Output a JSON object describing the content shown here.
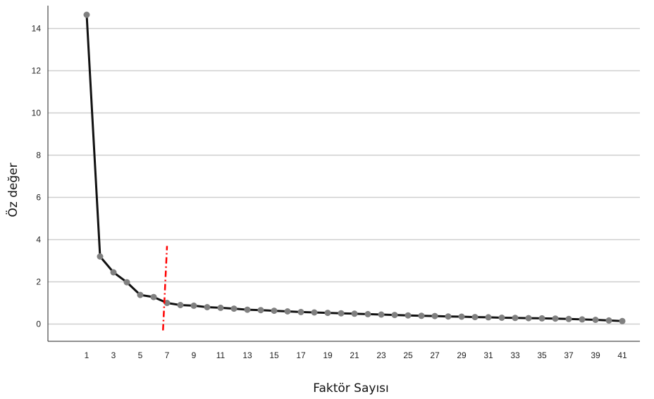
{
  "chart_data": {
    "type": "line",
    "title": "",
    "xlabel": "Faktör Sayısı",
    "ylabel": "Öz değer",
    "x": [
      1,
      2,
      3,
      4,
      5,
      6,
      7,
      8,
      9,
      10,
      11,
      12,
      13,
      14,
      15,
      16,
      17,
      18,
      19,
      20,
      21,
      22,
      23,
      24,
      25,
      26,
      27,
      28,
      29,
      30,
      31,
      32,
      33,
      34,
      35,
      36,
      37,
      38,
      39,
      40,
      41
    ],
    "x_tick_labels": [
      "1",
      "3",
      "5",
      "7",
      "9",
      "11",
      "13",
      "15",
      "17",
      "19",
      "21",
      "23",
      "25",
      "27",
      "29",
      "31",
      "33",
      "35",
      "37",
      "39",
      "41"
    ],
    "y_tick_labels": [
      "0",
      "2",
      "4",
      "6",
      "8",
      "10",
      "12",
      "14"
    ],
    "ylim": [
      -0.6,
      15.2
    ],
    "grid": "horizontal",
    "series": [
      {
        "values": [
          14.65,
          3.2,
          2.45,
          1.98,
          1.38,
          1.28,
          1.0,
          0.9,
          0.87,
          0.8,
          0.77,
          0.73,
          0.68,
          0.66,
          0.63,
          0.6,
          0.57,
          0.55,
          0.53,
          0.51,
          0.49,
          0.47,
          0.45,
          0.43,
          0.41,
          0.39,
          0.38,
          0.36,
          0.35,
          0.33,
          0.32,
          0.3,
          0.29,
          0.28,
          0.27,
          0.26,
          0.24,
          0.22,
          0.2,
          0.17,
          0.14
        ],
        "color": "#111111",
        "marker_color": "#808080"
      }
    ],
    "annotations": [
      {
        "type": "dash-dot-line",
        "color": "#ff0000",
        "meaning": "cutoff",
        "from": {
          "x": 6.7,
          "y": -0.3
        },
        "to": {
          "x": 7.0,
          "y": 3.7
        }
      }
    ]
  }
}
